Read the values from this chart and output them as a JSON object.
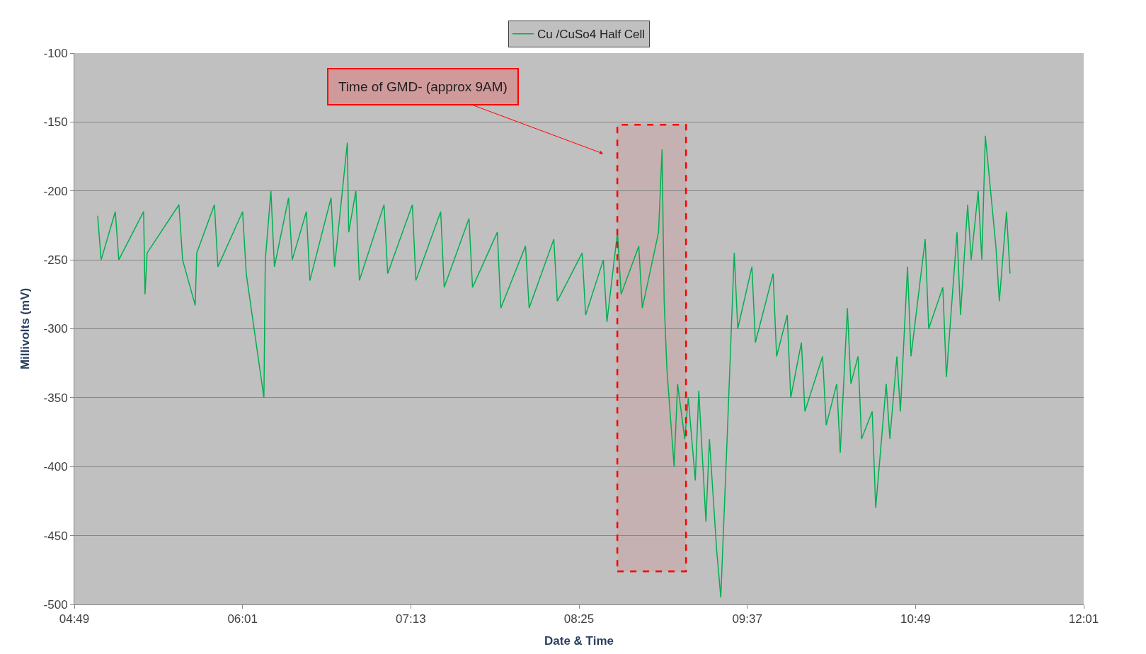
{
  "chart_data": {
    "type": "line",
    "xlabel": "Date & Time",
    "ylabel": "Millivolts (mV)",
    "xlim": [
      4.8167,
      12.0167
    ],
    "xticks": [
      {
        "value": 4.8167,
        "label": "04:49"
      },
      {
        "value": 6.0167,
        "label": "06:01"
      },
      {
        "value": 7.2167,
        "label": "07:13"
      },
      {
        "value": 8.4167,
        "label": "08:25"
      },
      {
        "value": 9.6167,
        "label": "09:37"
      },
      {
        "value": 10.8167,
        "label": "10:49"
      },
      {
        "value": 12.0167,
        "label": "12:01"
      }
    ],
    "ylim": [
      -500,
      -100
    ],
    "yticks": [
      -500,
      -450,
      -400,
      -350,
      -300,
      -250,
      -200,
      -150,
      -100
    ],
    "grid": "y",
    "legend": "top",
    "series": [
      {
        "name": "Cu /CuSo4 Half Cell",
        "color": "#00b050",
        "x": [
          4.983,
          5.008,
          5.109,
          5.134,
          5.311,
          5.321,
          5.336,
          5.563,
          5.589,
          5.679,
          5.69,
          5.816,
          5.841,
          6.017,
          6.043,
          6.169,
          6.179,
          6.219,
          6.244,
          6.345,
          6.371,
          6.472,
          6.497,
          6.648,
          6.673,
          6.764,
          6.774,
          6.825,
          6.85,
          7.026,
          7.052,
          7.228,
          7.253,
          7.43,
          7.455,
          7.632,
          7.657,
          7.834,
          7.859,
          8.035,
          8.061,
          8.237,
          8.262,
          8.439,
          8.464,
          8.59,
          8.616,
          8.691,
          8.717,
          8.843,
          8.868,
          8.984,
          9.009,
          9.024,
          9.044,
          9.095,
          9.12,
          9.171,
          9.196,
          9.246,
          9.271,
          9.322,
          9.347,
          9.398,
          9.428,
          9.473,
          9.524,
          9.549,
          9.65,
          9.675,
          9.801,
          9.826,
          9.902,
          9.927,
          10.003,
          10.028,
          10.154,
          10.18,
          10.255,
          10.28,
          10.331,
          10.356,
          10.407,
          10.432,
          10.508,
          10.533,
          10.608,
          10.634,
          10.684,
          10.709,
          10.76,
          10.785,
          10.886,
          10.911,
          11.012,
          11.037,
          11.113,
          11.138,
          11.189,
          11.214,
          11.264,
          11.29,
          11.315,
          11.39,
          11.415,
          11.466,
          11.491
        ],
        "values": [
          -218,
          -250,
          -215,
          -250,
          -215,
          -275,
          -245,
          -210,
          -250,
          -283,
          -245,
          -210,
          -255,
          -215,
          -260,
          -350,
          -250,
          -200,
          -255,
          -205,
          -250,
          -215,
          -265,
          -205,
          -255,
          -165,
          -230,
          -200,
          -265,
          -210,
          -260,
          -210,
          -265,
          -215,
          -270,
          -220,
          -270,
          -230,
          -285,
          -240,
          -285,
          -235,
          -280,
          -245,
          -290,
          -250,
          -295,
          -230,
          -275,
          -240,
          -285,
          -230,
          -170,
          -280,
          -330,
          -400,
          -340,
          -380,
          -350,
          -410,
          -345,
          -440,
          -380,
          -460,
          -495,
          -380,
          -245,
          -300,
          -255,
          -310,
          -260,
          -320,
          -290,
          -350,
          -310,
          -360,
          -320,
          -370,
          -340,
          -390,
          -285,
          -340,
          -320,
          -380,
          -360,
          -430,
          -340,
          -380,
          -320,
          -360,
          -255,
          -320,
          -235,
          -300,
          -270,
          -335,
          -230,
          -290,
          -210,
          -250,
          -200,
          -250,
          -160,
          -240,
          -280,
          -215,
          -260
        ]
      }
    ],
    "annotations": [
      "Time of GMD- (approx 9AM)"
    ],
    "bands": [
      {
        "axis": "x",
        "from": 8.69,
        "to": 9.18,
        "color": "#ff0000"
      }
    ]
  }
}
